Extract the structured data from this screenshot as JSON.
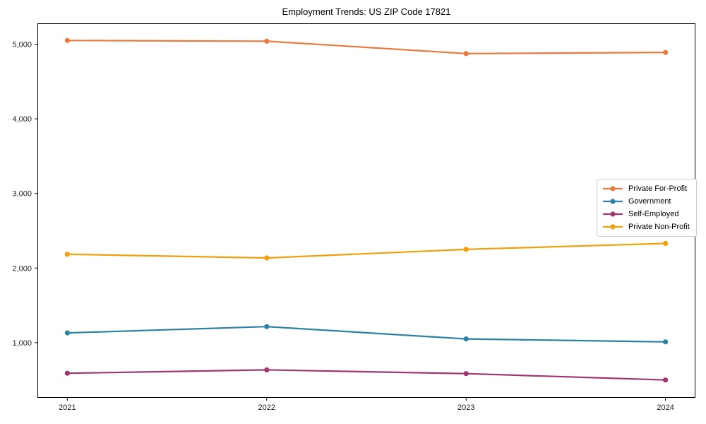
{
  "figure": {
    "background": "#ffffff",
    "spine_color": "#000000",
    "tick_label_color": "#1a1a1a",
    "legend_border_color": "#cccccc"
  },
  "chart_data": {
    "type": "line",
    "title": "Employment Trends: US ZIP Code 17821",
    "xlabel": "",
    "ylabel": "",
    "x": [
      2021,
      2022,
      2023,
      2024
    ],
    "x_tick_labels": [
      "2021",
      "2022",
      "2023",
      "2024"
    ],
    "xlim": [
      2020.85,
      2024.15
    ],
    "ylim": [
      260,
      5280
    ],
    "yticks": [
      {
        "value": 1000,
        "label": "1,000"
      },
      {
        "value": 2000,
        "label": "2,000"
      },
      {
        "value": 3000,
        "label": "3,000"
      },
      {
        "value": 4000,
        "label": "4,000"
      },
      {
        "value": 5000,
        "label": "5,000"
      }
    ],
    "grid": false,
    "legend_position": "center-right",
    "marker": "circle",
    "series": [
      {
        "name": "Private For-Profit",
        "color": "#e87a3f",
        "values": [
          5050,
          5040,
          4875,
          4890
        ]
      },
      {
        "name": "Government",
        "color": "#2f81a3",
        "values": [
          1130,
          1215,
          1050,
          1010
        ]
      },
      {
        "name": "Self-Employed",
        "color": "#a0376f",
        "values": [
          590,
          635,
          585,
          500
        ]
      },
      {
        "name": "Private Non-Profit",
        "color": "#efa00c",
        "values": [
          2185,
          2135,
          2250,
          2330
        ]
      }
    ]
  }
}
